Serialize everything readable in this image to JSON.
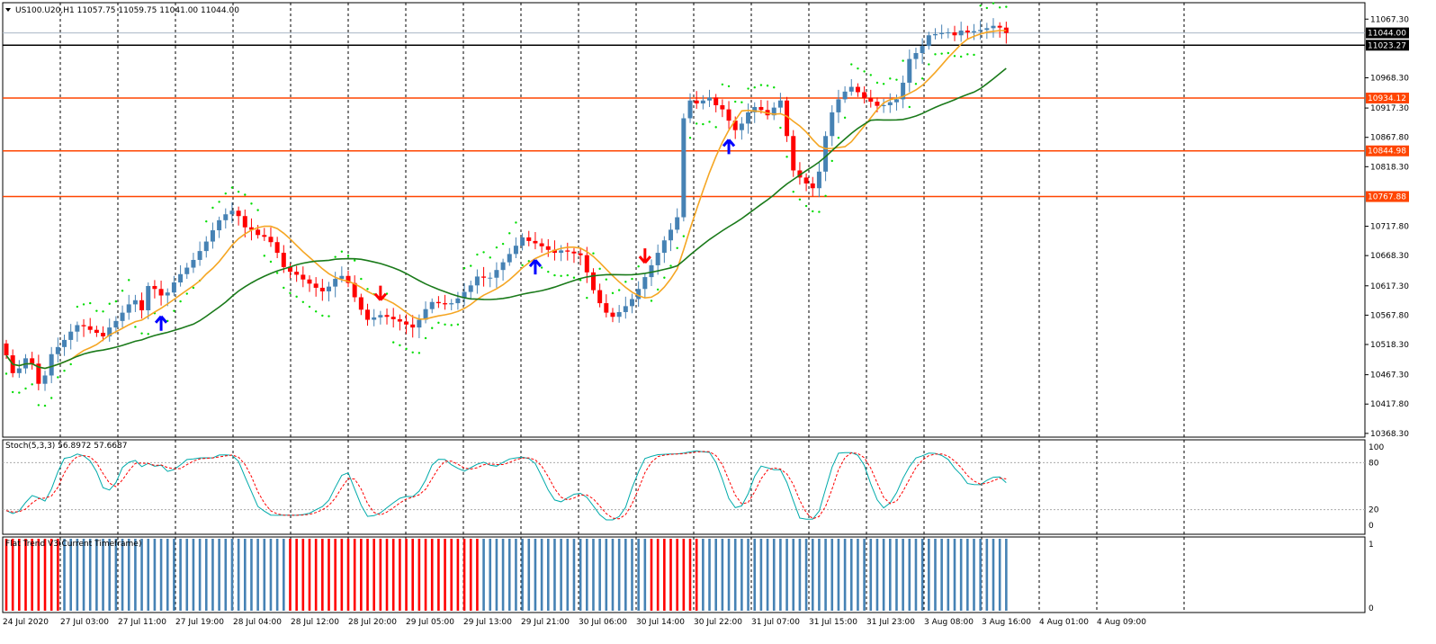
{
  "window": {
    "symbol_header": "US100.U20,H1  11057.75 11059.75 11041.00 11044.00"
  },
  "chart_data": [
    {
      "type": "candlestick",
      "x": [
        "24 Jul 2020",
        "27 Jul 03:00",
        "27 Jul 11:00",
        "27 Jul 19:00",
        "28 Jul 04:00",
        "28 Jul 12:00",
        "28 Jul 20:00",
        "29 Jul 05:00",
        "29 Jul 13:00",
        "29 Jul 21:00",
        "30 Jul 06:00",
        "30 Jul 14:00",
        "30 Jul 22:00",
        "31 Jul 07:00",
        "31 Jul 15:00",
        "31 Jul 23:00",
        "3 Aug 08:00",
        "3 Aug 16:00",
        "4 Aug 01:00",
        "4 Aug 09:00"
      ],
      "y_ticks": [
        "11067.30",
        "10968.30",
        "10917.30",
        "10867.80",
        "10818.30",
        "10717.80",
        "10668.30",
        "10617.30",
        "10567.80",
        "10518.30",
        "10467.30",
        "10417.80",
        "10368.30"
      ],
      "ylim": [
        10362,
        11095
      ],
      "close_series": [
        10500,
        10470,
        10478,
        10495,
        10486,
        10452,
        10466,
        10502,
        10514,
        10526,
        10540,
        10551,
        10549,
        10543,
        10538,
        10532,
        10547,
        10558,
        10572,
        10586,
        10593,
        10576,
        10617,
        10612,
        10601,
        10606,
        10623,
        10637,
        10648,
        10661,
        10676,
        10692,
        10711,
        10728,
        10738,
        10744,
        10735,
        10716,
        10712,
        10703,
        10700,
        10691,
        10673,
        10649,
        10641,
        10636,
        10628,
        10621,
        10614,
        10608,
        10616,
        10629,
        10634,
        10622,
        10598,
        10577,
        10560,
        10564,
        10568,
        10565,
        10561,
        10557,
        10552,
        10547,
        10560,
        10578,
        10590,
        10588,
        10586,
        10588,
        10596,
        10607,
        10618,
        10633,
        10631,
        10631,
        10644,
        10657,
        10671,
        10685,
        10699,
        10693,
        10689,
        10684,
        10678,
        10673,
        10677,
        10675,
        10672,
        10669,
        10640,
        10610,
        10588,
        10572,
        10565,
        10573,
        10583,
        10595,
        10612,
        10632,
        10652,
        10673,
        10694,
        10712,
        10733,
        10900,
        10930,
        10925,
        10930,
        10935,
        10922,
        10915,
        10896,
        10880,
        10891,
        10910,
        10919,
        10914,
        10905,
        10918,
        10930,
        10870,
        10812,
        10800,
        10790,
        10782,
        10810,
        10870,
        10910,
        10932,
        10945,
        10953,
        10944,
        10934,
        10928,
        10921,
        10922,
        10927,
        10932,
        10960,
        11000,
        11010,
        11022,
        11040,
        11042,
        11044,
        11045,
        11040,
        11048,
        11045,
        11047,
        11049,
        11052,
        11056,
        11053,
        11044
      ],
      "series": [
        {
          "name": "",
          "color": "#f5a623"
        },
        {
          "name": "",
          "color": "#1a7a1a"
        }
      ],
      "horizontal_lines": [
        {
          "value": 11044.0,
          "label": "11044.00",
          "color": "#000000"
        },
        {
          "value": 11023.27,
          "label": "11023.27",
          "color": "#000000"
        },
        {
          "value": 10934.12,
          "label": "10934.12",
          "color": "#ff4500"
        },
        {
          "value": 10844.98,
          "label": "10844.98",
          "color": "#ff4500"
        },
        {
          "value": 10767.88,
          "label": "10767.88",
          "color": "#ff4500"
        }
      ],
      "arrows": [
        {
          "index": 24,
          "dir": "up",
          "color": "#0000ff"
        },
        {
          "index": 58,
          "dir": "down",
          "color": "#ff0000"
        },
        {
          "index": 82,
          "dir": "up",
          "color": "#0000ff"
        },
        {
          "index": 99,
          "dir": "down",
          "color": "#ff0000"
        },
        {
          "index": 112,
          "dir": "up",
          "color": "#0000ff"
        }
      ],
      "colors": {
        "bull": "#4682b4",
        "bear": "#ff0000",
        "psar": "#00dd00"
      }
    },
    {
      "type": "line",
      "title": "Stoch(5,3,3) 56.8972 57.6687",
      "y_ticks": [
        "100",
        "80",
        "20",
        "0"
      ],
      "ylim": [
        0,
        100
      ],
      "series": [
        {
          "name": "",
          "color": "#00aaaa"
        },
        {
          "name": "",
          "color": "#ff0000"
        }
      ],
      "levels": [
        80,
        20
      ]
    },
    {
      "type": "bar",
      "title": "Flat Trend V3(Current Timeframe)",
      "y_ticks": [
        "1",
        "0"
      ],
      "ylim": [
        0,
        1
      ],
      "segments": [
        {
          "from": 0,
          "to": 8,
          "color": "#ff0000"
        },
        {
          "from": 9,
          "to": 43,
          "color": "#4682b4"
        },
        {
          "from": 44,
          "to": 61,
          "color": "#ff0000"
        },
        {
          "from": 62,
          "to": 73,
          "color": "#ff0000"
        },
        {
          "from": 74,
          "to": 99,
          "color": "#4682b4"
        },
        {
          "from": 100,
          "to": 107,
          "color": "#ff0000"
        },
        {
          "from": 108,
          "to": 165,
          "color": "#4682b4"
        }
      ]
    }
  ]
}
